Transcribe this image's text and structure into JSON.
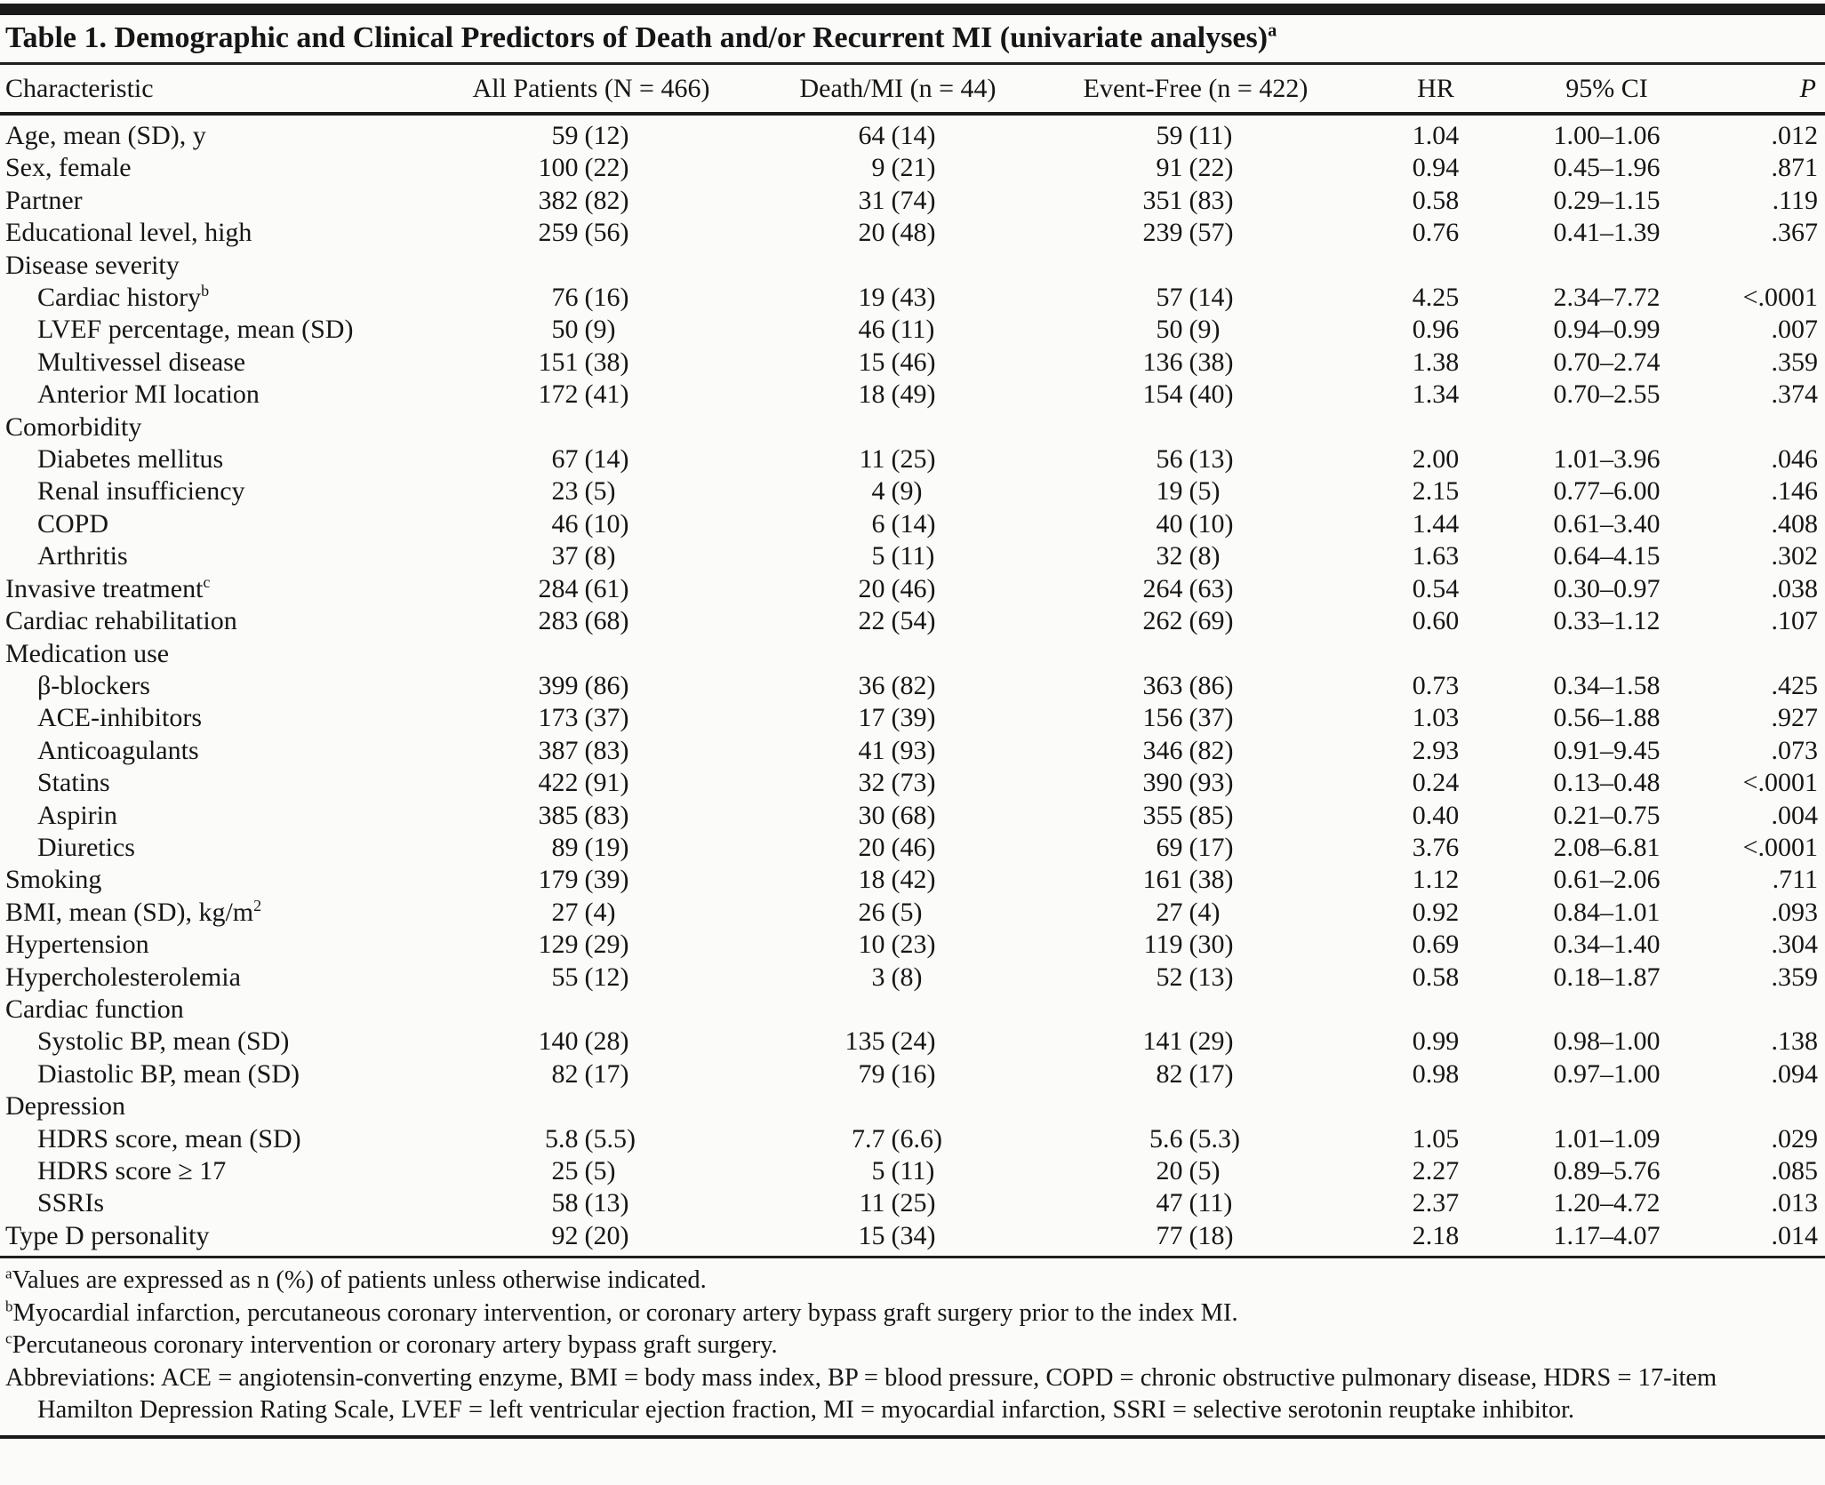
{
  "table": {
    "title": "Table 1. Demographic and Clinical Predictors of Death and/or Recurrent MI (univariate analyses)",
    "title_superscript": "a",
    "columns": [
      "Characteristic",
      "All Patients (N = 466)",
      "Death/MI (n = 44)",
      "Event-Free (n = 422)",
      "HR",
      "95% CI",
      "P"
    ],
    "rows": [
      {
        "label": "Age, mean (SD), y",
        "indent": 0,
        "values": [
          "59 (12)",
          "64 (14)",
          "59 (11)",
          "1.04",
          "1.00–1.06",
          ".012"
        ]
      },
      {
        "label": "Sex, female",
        "indent": 0,
        "values": [
          "100 (22)",
          "9 (21)",
          "91 (22)",
          "0.94",
          "0.45–1.96",
          ".871"
        ]
      },
      {
        "label": "Partner",
        "indent": 0,
        "values": [
          "382 (82)",
          "31 (74)",
          "351 (83)",
          "0.58",
          "0.29–1.15",
          ".119"
        ]
      },
      {
        "label": "Educational level, high",
        "indent": 0,
        "values": [
          "259 (56)",
          "20 (48)",
          "239 (57)",
          "0.76",
          "0.41–1.39",
          ".367"
        ]
      },
      {
        "label": "Disease severity",
        "section": true
      },
      {
        "label": "Cardiac history",
        "sup": "b",
        "indent": 1,
        "values": [
          "76 (16)",
          "19 (43)",
          "57 (14)",
          "4.25",
          "2.34–7.72",
          "<.0001"
        ]
      },
      {
        "label": "LVEF percentage, mean (SD)",
        "indent": 1,
        "values": [
          "50 (9)",
          "46 (11)",
          "50 (9)",
          "0.96",
          "0.94–0.99",
          ".007"
        ]
      },
      {
        "label": "Multivessel disease",
        "indent": 1,
        "values": [
          "151 (38)",
          "15 (46)",
          "136 (38)",
          "1.38",
          "0.70–2.74",
          ".359"
        ]
      },
      {
        "label": "Anterior MI location",
        "indent": 1,
        "values": [
          "172 (41)",
          "18 (49)",
          "154 (40)",
          "1.34",
          "0.70–2.55",
          ".374"
        ]
      },
      {
        "label": "Comorbidity",
        "section": true
      },
      {
        "label": "Diabetes mellitus",
        "indent": 1,
        "values": [
          "67 (14)",
          "11 (25)",
          "56 (13)",
          "2.00",
          "1.01–3.96",
          ".046"
        ]
      },
      {
        "label": "Renal insufficiency",
        "indent": 1,
        "values": [
          "23 (5)",
          "4 (9)",
          "19 (5)",
          "2.15",
          "0.77–6.00",
          ".146"
        ]
      },
      {
        "label": "COPD",
        "indent": 1,
        "values": [
          "46 (10)",
          "6 (14)",
          "40 (10)",
          "1.44",
          "0.61–3.40",
          ".408"
        ]
      },
      {
        "label": "Arthritis",
        "indent": 1,
        "values": [
          "37 (8)",
          "5 (11)",
          "32 (8)",
          "1.63",
          "0.64–4.15",
          ".302"
        ]
      },
      {
        "label": "Invasive treatment",
        "sup": "c",
        "indent": 0,
        "values": [
          "284 (61)",
          "20 (46)",
          "264 (63)",
          "0.54",
          "0.30–0.97",
          ".038"
        ]
      },
      {
        "label": "Cardiac rehabilitation",
        "indent": 0,
        "values": [
          "283 (68)",
          "22 (54)",
          "262 (69)",
          "0.60",
          "0.33–1.12",
          ".107"
        ]
      },
      {
        "label": "Medication use",
        "section": true
      },
      {
        "label": "β-blockers",
        "indent": 1,
        "values": [
          "399 (86)",
          "36 (82)",
          "363 (86)",
          "0.73",
          "0.34–1.58",
          ".425"
        ]
      },
      {
        "label": "ACE-inhibitors",
        "indent": 1,
        "values": [
          "173 (37)",
          "17 (39)",
          "156 (37)",
          "1.03",
          "0.56–1.88",
          ".927"
        ]
      },
      {
        "label": "Anticoagulants",
        "indent": 1,
        "values": [
          "387 (83)",
          "41 (93)",
          "346 (82)",
          "2.93",
          "0.91–9.45",
          ".073"
        ]
      },
      {
        "label": "Statins",
        "indent": 1,
        "values": [
          "422 (91)",
          "32 (73)",
          "390 (93)",
          "0.24",
          "0.13–0.48",
          "<.0001"
        ]
      },
      {
        "label": "Aspirin",
        "indent": 1,
        "values": [
          "385 (83)",
          "30 (68)",
          "355 (85)",
          "0.40",
          "0.21–0.75",
          ".004"
        ]
      },
      {
        "label": "Diuretics",
        "indent": 1,
        "values": [
          "89 (19)",
          "20 (46)",
          "69 (17)",
          "3.76",
          "2.08–6.81",
          "<.0001"
        ]
      },
      {
        "label": "Smoking",
        "indent": 0,
        "values": [
          "179 (39)",
          "18 (42)",
          "161 (38)",
          "1.12",
          "0.61–2.06",
          ".711"
        ]
      },
      {
        "label": "BMI, mean (SD), kg/m",
        "sup": "2",
        "indent": 0,
        "values": [
          "27 (4)",
          "26 (5)",
          "27 (4)",
          "0.92",
          "0.84–1.01",
          ".093"
        ]
      },
      {
        "label": "Hypertension",
        "indent": 0,
        "values": [
          "129 (29)",
          "10 (23)",
          "119 (30)",
          "0.69",
          "0.34–1.40",
          ".304"
        ]
      },
      {
        "label": "Hypercholesterolemia",
        "indent": 0,
        "values": [
          "55 (12)",
          "3 (8)",
          "52 (13)",
          "0.58",
          "0.18–1.87",
          ".359"
        ]
      },
      {
        "label": "Cardiac function",
        "section": true
      },
      {
        "label": "Systolic BP, mean (SD)",
        "indent": 1,
        "values": [
          "140 (28)",
          "135 (24)",
          "141 (29)",
          "0.99",
          "0.98–1.00",
          ".138"
        ]
      },
      {
        "label": "Diastolic BP, mean (SD)",
        "indent": 1,
        "values": [
          "82 (17)",
          "79 (16)",
          "82 (17)",
          "0.98",
          "0.97–1.00",
          ".094"
        ]
      },
      {
        "label": "Depression",
        "section": true
      },
      {
        "label": "HDRS score, mean (SD)",
        "indent": 1,
        "values": [
          "5.8 (5.5)",
          "7.7 (6.6)",
          "5.6 (5.3)",
          "1.05",
          "1.01–1.09",
          ".029"
        ]
      },
      {
        "label": "HDRS score ≥ 17",
        "indent": 1,
        "values": [
          "25 (5)",
          "5 (11)",
          "20 (5)",
          "2.27",
          "0.89–5.76",
          ".085"
        ]
      },
      {
        "label": "SSRIs",
        "indent": 1,
        "values": [
          "58 (13)",
          "11 (25)",
          "47 (11)",
          "2.37",
          "1.20–4.72",
          ".013"
        ]
      },
      {
        "label": "Type D personality",
        "indent": 0,
        "values": [
          "92 (20)",
          "15 (34)",
          "77 (18)",
          "2.18",
          "1.17–4.07",
          ".014"
        ]
      }
    ]
  },
  "footnotes": [
    {
      "sup": "a",
      "text": "Values are expressed as n (%) of patients unless otherwise indicated."
    },
    {
      "sup": "b",
      "text": "Myocardial infarction, percutaneous coronary intervention, or coronary artery bypass graft surgery prior to the index MI."
    },
    {
      "sup": "c",
      "text": "Percutaneous coronary intervention or coronary artery bypass graft surgery."
    },
    {
      "sup": "",
      "text": "Abbreviations: ACE = angiotensin-converting enzyme, BMI = body mass index, BP = blood pressure, COPD = chronic obstructive pulmonary disease, HDRS = 17-item Hamilton Depression Rating Scale, LVEF = left ventricular ejection fraction, MI = myocardial infarction, SSRI = selective serotonin reuptake inhibitor."
    }
  ]
}
